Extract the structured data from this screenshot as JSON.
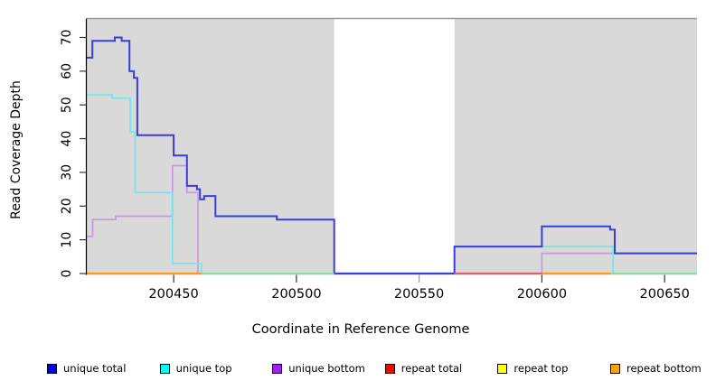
{
  "chart_data": {
    "type": "line",
    "line_style": "step",
    "title": "",
    "xlabel": "Coordinate in Reference Genome",
    "ylabel": "Read Coverage Depth",
    "xlim": [
      200414.6,
      200663.2
    ],
    "ylim": [
      0,
      75.8
    ],
    "x_ticks": [
      200450,
      200500,
      200550,
      200600,
      200650
    ],
    "y_ticks": [
      0,
      10,
      20,
      30,
      40,
      50,
      60,
      70
    ],
    "grid": false,
    "legend_position": "bottom",
    "panel_background": "#d9d9d9",
    "mask_region": {
      "x_start": 200515.4,
      "x_end": 200564.4,
      "color": "#ffffff"
    },
    "series": [
      {
        "name": "repeat total",
        "legend_color": "#ff0000",
        "line_color": "#dd6070",
        "points": [
          [
            200414.6,
            0
          ]
        ]
      },
      {
        "name": "repeat top",
        "legend_color": "#ffff00",
        "line_color": "#e8e87a",
        "points": [
          [
            200414.6,
            0
          ]
        ]
      },
      {
        "name": "repeat bottom",
        "legend_color": "#ffa300",
        "line_color": "#ff9b12",
        "points": [
          [
            200414.6,
            0
          ]
        ]
      },
      {
        "name": "unique bottom",
        "legend_color": "#a020f0",
        "line_color": "#c49ade",
        "points": [
          [
            200414.6,
            11
          ],
          [
            200417,
            16
          ],
          [
            200426.4,
            17
          ],
          [
            200449.5,
            32
          ],
          [
            200455.4,
            24
          ],
          [
            200459.9,
            0
          ],
          [
            200600,
            6
          ]
        ]
      },
      {
        "name": "unique top",
        "legend_color": "#00ffff",
        "line_color": "#70e8ea",
        "points": [
          [
            200414.6,
            53
          ],
          [
            200425,
            52
          ],
          [
            200432.3,
            42
          ],
          [
            200434.3,
            24
          ],
          [
            200449.5,
            3
          ],
          [
            200461.3,
            0
          ],
          [
            200564.4,
            8
          ],
          [
            200629,
            0
          ]
        ]
      },
      {
        "name": "unique total",
        "legend_color": "#0000f0",
        "line_color": "#3c3cd8",
        "points": [
          [
            200414.6,
            64
          ],
          [
            200416.9,
            69
          ],
          [
            200426,
            70
          ],
          [
            200428.8,
            69
          ],
          [
            200432,
            60
          ],
          [
            200433.8,
            58
          ],
          [
            200435.2,
            41
          ],
          [
            200450,
            35
          ],
          [
            200455.4,
            26
          ],
          [
            200459.5,
            25
          ],
          [
            200460.7,
            22
          ],
          [
            200462.4,
            23
          ],
          [
            200467,
            17
          ],
          [
            200492,
            16
          ],
          [
            200515.4,
            0
          ],
          [
            200564.4,
            8
          ],
          [
            200600,
            14
          ],
          [
            200627.8,
            13
          ],
          [
            200629.7,
            6
          ]
        ]
      }
    ],
    "baseline_segments": [
      {
        "x_start": 200414.6,
        "x_end": 200461.3,
        "color": "#ff9b12"
      },
      {
        "x_start": 200461.3,
        "x_end": 200515.4,
        "color": "#8adf9e"
      },
      {
        "x_start": 200515.4,
        "x_end": 200564.4,
        "color": "#3c3cd8"
      },
      {
        "x_start": 200564.4,
        "x_end": 200600.0,
        "color": "#dd6070"
      },
      {
        "x_start": 200600.0,
        "x_end": 200627.9,
        "color": "#ff9b12"
      },
      {
        "x_start": 200627.9,
        "x_end": 200663.2,
        "color": "#8adf9e"
      }
    ],
    "legend_order": [
      "unique total",
      "unique top",
      "unique bottom",
      "repeat total",
      "repeat top",
      "repeat bottom"
    ]
  },
  "figure": {
    "axis_color": "#000000",
    "tick_color": "#333333",
    "masked_tick_color": "#999999",
    "panel_top_border_color": "#9a9a9a",
    "text_color": "#000000"
  }
}
